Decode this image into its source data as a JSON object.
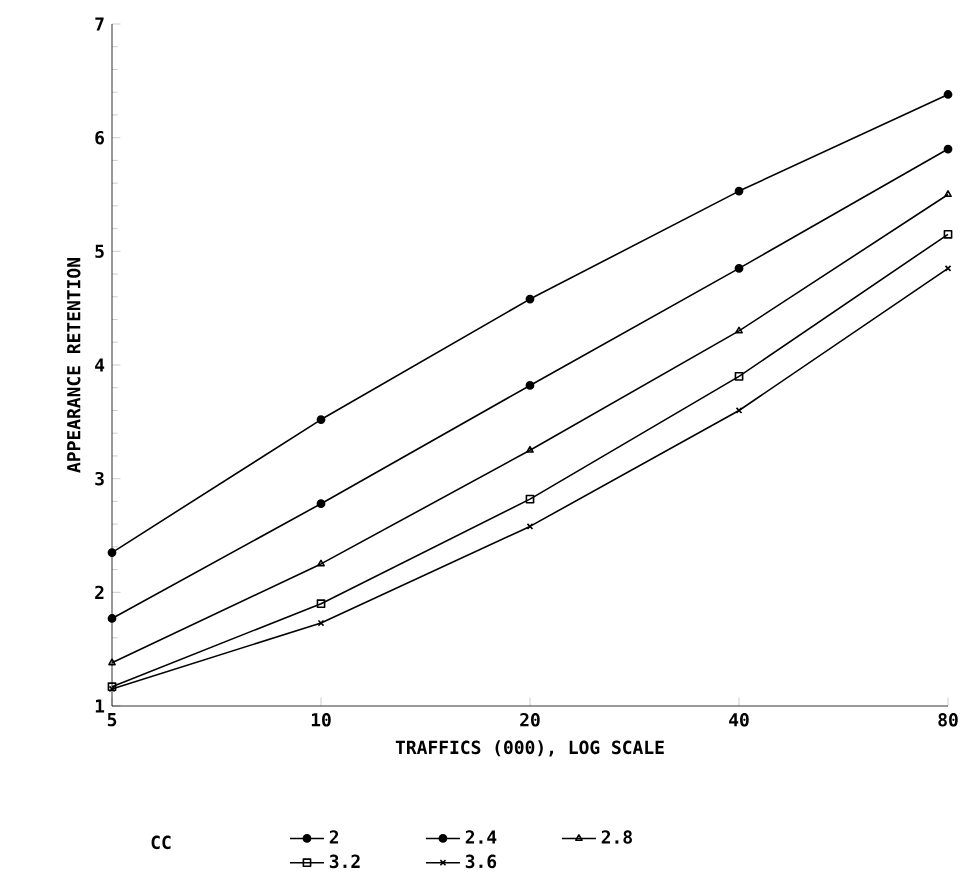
{
  "chart_data": {
    "type": "line",
    "xlabel": "TRAFFICS (000), LOG SCALE",
    "ylabel": "APPEARANCE RETENTION",
    "legend_title": "CC",
    "log": "x",
    "x": [
      5,
      10,
      20,
      40,
      80
    ],
    "xlim": [
      5,
      80
    ],
    "xticks": [
      5,
      10,
      20,
      40,
      80
    ],
    "ylim": [
      1,
      7
    ],
    "yticks": [
      1,
      2,
      3,
      4,
      5,
      6,
      7
    ],
    "grid": false,
    "legend": "bottom",
    "line_style": "solid",
    "series": [
      {
        "name": "2",
        "color": "#000000",
        "marker": "circle",
        "values": [
          2.35,
          3.52,
          4.58,
          5.53,
          6.38
        ]
      },
      {
        "name": "2.4",
        "color": "#000000",
        "marker": "circle",
        "values": [
          1.77,
          2.78,
          3.82,
          4.85,
          5.9
        ]
      },
      {
        "name": "2.8",
        "color": "#000000",
        "marker": "triangle",
        "values": [
          1.38,
          2.25,
          3.25,
          4.3,
          5.5
        ]
      },
      {
        "name": "3.2",
        "color": "#000000",
        "marker": "square",
        "values": [
          1.17,
          1.9,
          2.82,
          3.9,
          5.15
        ]
      },
      {
        "name": "3.6",
        "color": "#000000",
        "marker": "cross",
        "values": [
          1.15,
          1.73,
          2.58,
          3.6,
          4.85
        ]
      }
    ]
  }
}
